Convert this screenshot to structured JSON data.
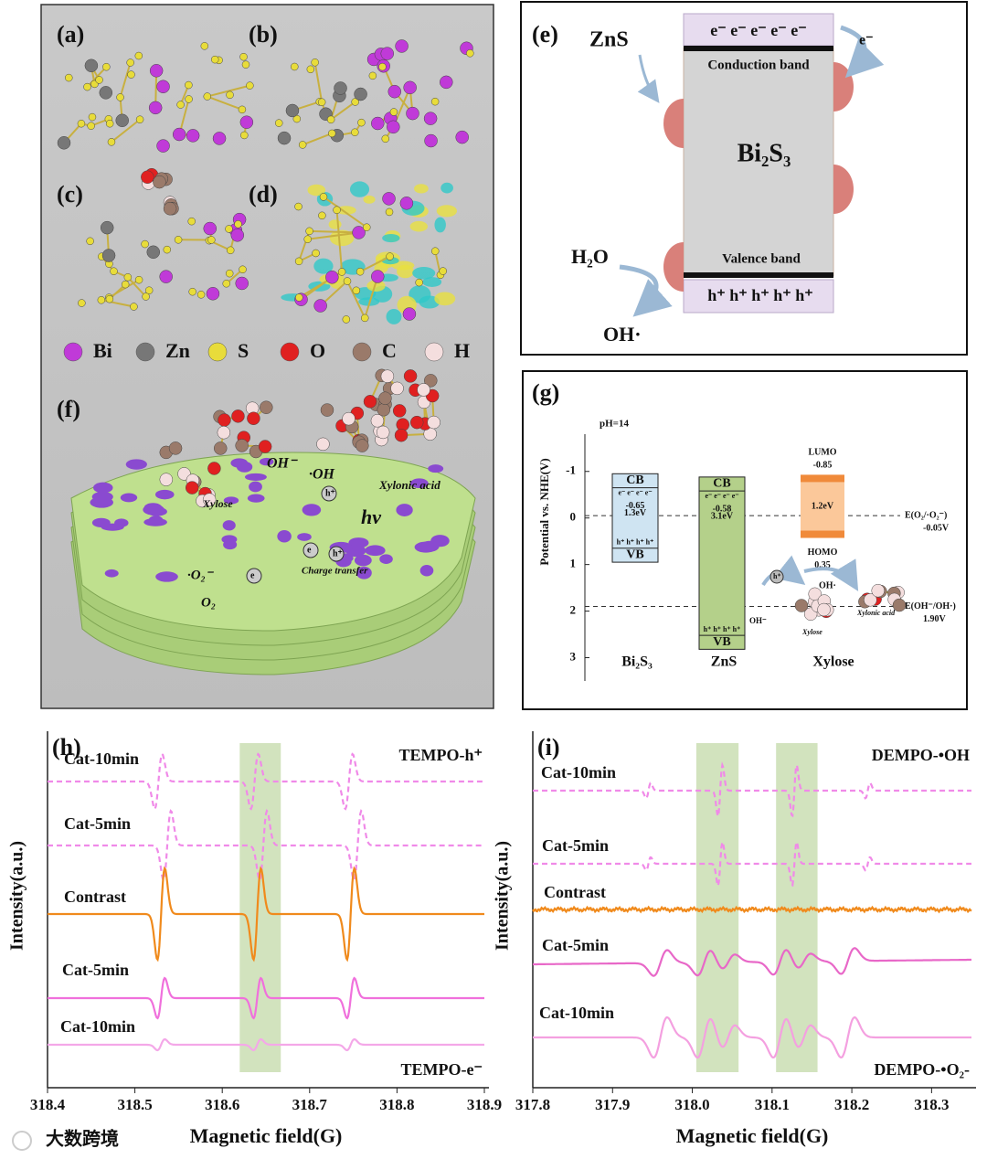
{
  "panel_labels": {
    "a": "(a)",
    "b": "(b)",
    "c": "(c)",
    "d": "(d)",
    "e": "(e)",
    "f": "(f)",
    "g": "(g)",
    "h": "(h)",
    "i": "(i)"
  },
  "legend": [
    {
      "label": "Bi",
      "color": "#c03ad8"
    },
    {
      "label": "Zn",
      "color": "#777777"
    },
    {
      "label": "S",
      "color": "#e8dc3a"
    },
    {
      "label": "O",
      "color": "#e02020"
    },
    {
      "label": "C",
      "color": "#9a7a6a"
    },
    {
      "label": "H",
      "color": "#f4dede"
    }
  ],
  "panel_f": {
    "oh_minus": "OH⁻",
    "oh_radical": "·OH",
    "xylonic_acid": "Xylonic acid",
    "xylose": "Xylose",
    "hv": "hν",
    "superoxide": "·O₂⁻",
    "oxygen": "O₂",
    "electron": "e⁻",
    "hole": "h⁺",
    "electron_small": "e",
    "charge_transfer": "Charge transfer"
  },
  "panel_e": {
    "zns": "ZnS",
    "electrons": "e⁻  e⁻  e⁻  e⁻  e⁻",
    "electron": "e⁻",
    "conduction_band": "Conduction band",
    "bi2s3": "Bi₂S₃",
    "valence_band": "Valence band",
    "water": "H₂O",
    "hydroxyl": "OH·",
    "holes": "h⁺ h⁺ h⁺ h⁺ h⁺"
  },
  "panel_g": {
    "ph": "pH=14",
    "y_label": "Potential vs. NHE(V)",
    "ylim": [
      -1.8,
      3.5
    ],
    "yticks": [
      -1,
      0,
      1,
      2,
      3
    ],
    "cb_label": "CB",
    "vb_label": "VB",
    "electrons": "e⁻ e⁻ e⁻ e⁻",
    "holes": "h⁺ h⁺ h⁺ h⁺",
    "materials": [
      {
        "name": "Bi₂S₃",
        "cb": -0.65,
        "gap": {
          "value": 1.3,
          "label": "1.3eV"
        },
        "color": "#cfe4f2"
      },
      {
        "name": "ZnS",
        "cb": -0.58,
        "gap": {
          "value": 3.1,
          "label": "3.1eV"
        },
        "color": "#b4d08a"
      }
    ],
    "xylose": {
      "name": "Xylose",
      "lumo_label": "LUMO",
      "lumo": -0.85,
      "homo_label": "HOMO",
      "homo": 0.35,
      "gap": {
        "value": 1.2,
        "label": "1.2eV"
      },
      "color": "#f08a3a"
    },
    "levels": [
      {
        "label": "E(O₂/·O₂⁻)",
        "value": {
          "value": -0.05,
          "label": "-0.05V"
        }
      },
      {
        "label": "E(OH⁻/OH·)",
        "value": {
          "value": 1.9,
          "label": "1.90V"
        }
      }
    ],
    "h_plus": "h⁺",
    "oh_radical": "OH·",
    "oh_minus": "OH⁻",
    "xylose_small": "Xylose",
    "xylonic_small": "Xylonic acid"
  },
  "panel_h": {
    "x_label": "Magnetic field(G)",
    "y_label": "Intensity(a.u.)",
    "top_label": "TEMPO-h⁺",
    "bottom_label": "TEMPO-e⁻",
    "xlim": [
      318.4,
      318.9
    ],
    "xticks": [
      318.4,
      318.5,
      318.6,
      318.7,
      318.8,
      318.9
    ],
    "highlights": [
      [
        318.62,
        318.667
      ]
    ],
    "traces": [
      {
        "name": "Cat-10min",
        "color": "#f08ae8",
        "dashed": true,
        "peaks": [
          318.527,
          318.637,
          318.745
        ]
      },
      {
        "name": "Cat-5min",
        "color": "#f08ae8",
        "dashed": true,
        "peaks": [
          318.537,
          318.647,
          318.755
        ]
      },
      {
        "name": "Contrast",
        "color": "#f08a1c",
        "dashed": false,
        "peaks": [
          318.53,
          318.64,
          318.747
        ]
      },
      {
        "name": "Cat-5min",
        "color": "#f070dc",
        "dashed": false,
        "peaks": [
          318.53,
          318.64,
          318.747
        ]
      },
      {
        "name": "Cat-10min",
        "color": "#f4a8e8",
        "dashed": false,
        "peaks": [
          318.53,
          318.64,
          318.747
        ]
      }
    ]
  },
  "panel_i": {
    "x_label": "Magnetic field(G)",
    "y_label": "Intensity(a.u.)",
    "top_label": "DEMPO-•OH",
    "bottom_label": "DEMPO-•O₂-",
    "xlim": [
      317.8,
      318.35
    ],
    "xticks": [
      317.8,
      317.9,
      {
        "value": 318,
        "label": "318.0"
      },
      318.1,
      318.2,
      318.3
    ],
    "highlights": [
      [
        318.005,
        318.058
      ],
      [
        318.105,
        318.157
      ]
    ],
    "traces": [
      {
        "name": "Cat-10min",
        "color": "#f08ae8",
        "dashed": true,
        "peaks": [
          317.945,
          318.035,
          318.128,
          318.22
        ]
      },
      {
        "name": "Cat-5min",
        "color": "#f08ae8",
        "dashed": true,
        "peaks": [
          317.945,
          318.035,
          318.128,
          318.22
        ]
      },
      {
        "name": "Contrast",
        "color": "#f08a1c",
        "dashed": false,
        "peaks": []
      },
      {
        "name": "Cat-5min",
        "color": "#e868c8",
        "dashed": false,
        "peaks": [
          317.96,
          318.015,
          318.045,
          318.11,
          318.14,
          318.195
        ]
      },
      {
        "name": "Cat-10min",
        "color": "#f4a0e0",
        "dashed": false,
        "peaks": [
          317.96,
          318.015,
          318.045,
          318.11,
          318.14,
          318.195
        ]
      }
    ]
  },
  "watermark": "大数跨境"
}
